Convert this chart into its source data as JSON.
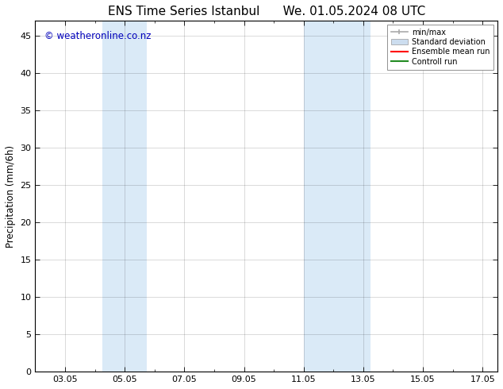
{
  "title_left": "ENS Time Series Istanbul",
  "title_right": "We. 01.05.2024 08 UTC",
  "ylabel": "Precipitation (mm/6h)",
  "ylim": [
    0,
    47
  ],
  "yticks": [
    0,
    5,
    10,
    15,
    20,
    25,
    30,
    35,
    40,
    45
  ],
  "xtick_labels": [
    "03.05",
    "05.05",
    "07.05",
    "09.05",
    "11.05",
    "13.05",
    "15.05",
    "17.05"
  ],
  "xtick_positions": [
    3,
    5,
    7,
    9,
    11,
    13,
    15,
    17
  ],
  "xlim": [
    2.0,
    17.5
  ],
  "shaded_bands": [
    {
      "xmin": 4.25,
      "xmax": 5.0,
      "color": "#daeaf7"
    },
    {
      "xmin": 5.0,
      "xmax": 5.75,
      "color": "#daeaf7"
    },
    {
      "xmin": 11.0,
      "xmax": 11.75,
      "color": "#daeaf7"
    },
    {
      "xmin": 11.75,
      "xmax": 13.25,
      "color": "#daeaf7"
    }
  ],
  "bg_color": "#ffffff",
  "legend_items": [
    {
      "label": "min/max",
      "color": "#aaaaaa",
      "type": "minmax"
    },
    {
      "label": "Standard deviation",
      "color": "#ccddef",
      "type": "patch"
    },
    {
      "label": "Ensemble mean run",
      "color": "#ff0000",
      "type": "line"
    },
    {
      "label": "Controll run",
      "color": "#228b22",
      "type": "line"
    }
  ],
  "watermark": "© weatheronline.co.nz",
  "watermark_color": "#0000bb",
  "watermark_fontsize": 8.5,
  "title_fontsize": 11,
  "tick_fontsize": 8,
  "ylabel_fontsize": 8.5
}
